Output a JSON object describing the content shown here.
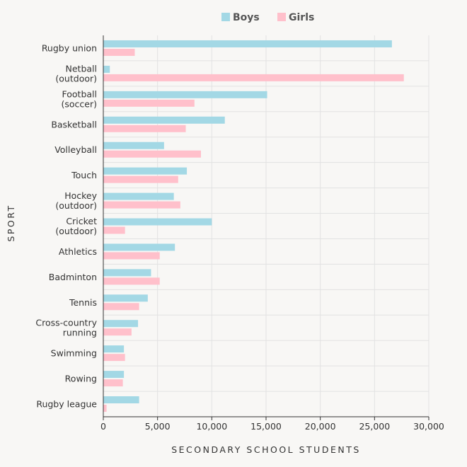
{
  "chart_data": {
    "type": "bar",
    "orientation": "horizontal",
    "categories": [
      "Rugby union",
      "Netball (outdoor)",
      "Football (soccer)",
      "Basketball",
      "Volleyball",
      "Touch",
      "Hockey (outdoor)",
      "Cricket (outdoor)",
      "Athletics",
      "Badminton",
      "Tennis",
      "Cross-country running",
      "Swimming",
      "Rowing",
      "Rugby league"
    ],
    "category_lines": [
      [
        "Rugby union"
      ],
      [
        "Netball",
        "(outdoor)"
      ],
      [
        "Football",
        "(soccer)"
      ],
      [
        "Basketball"
      ],
      [
        "Volleyball"
      ],
      [
        "Touch"
      ],
      [
        "Hockey",
        "(outdoor)"
      ],
      [
        "Cricket",
        "(outdoor)"
      ],
      [
        "Athletics"
      ],
      [
        "Badminton"
      ],
      [
        "Tennis"
      ],
      [
        "Cross-country",
        "running"
      ],
      [
        "Swimming"
      ],
      [
        "Rowing"
      ],
      [
        "Rugby league"
      ]
    ],
    "series": [
      {
        "name": "Boys",
        "color": "#a3d8e5",
        "values": [
          26600,
          600,
          15100,
          11200,
          5600,
          7700,
          6500,
          10000,
          6600,
          4400,
          4100,
          3200,
          1900,
          1900,
          3300
        ]
      },
      {
        "name": "Girls",
        "color": "#ffc0cb",
        "values": [
          2900,
          27700,
          8400,
          7600,
          9000,
          6900,
          7100,
          2000,
          5200,
          5200,
          3300,
          2600,
          2000,
          1800,
          300
        ]
      }
    ],
    "xlabel": "SECONDARY SCHOOL STUDENTS",
    "ylabel": "SPORT",
    "xlim": [
      0,
      30000
    ],
    "xticks": [
      0,
      5000,
      10000,
      15000,
      20000,
      25000,
      30000
    ],
    "xtick_labels": [
      "0",
      "5,000",
      "10,000",
      "15,000",
      "20,000",
      "25,000",
      "30,000"
    ],
    "legend_position": "top",
    "grid": true
  }
}
